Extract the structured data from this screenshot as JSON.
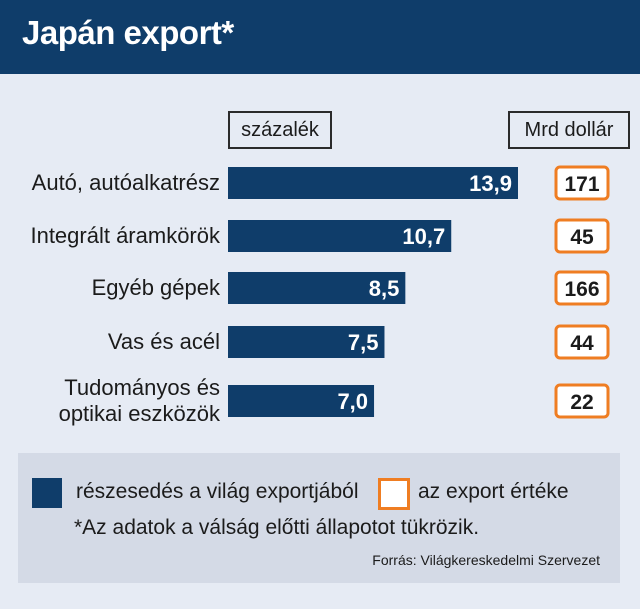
{
  "title": "Japán export*",
  "units": {
    "percent_label": "százalék",
    "usd_label": "Mrd dollár"
  },
  "colors": {
    "bar": "#0f3d6a",
    "value_box_border": "#ef7d22",
    "background": "#e6ebf4",
    "title_bar": "#0f3d6a"
  },
  "chart_data": {
    "type": "bar",
    "orientation": "horizontal",
    "categories": [
      [
        "Autó, autóalkatrész"
      ],
      [
        "Integrált áramkörök"
      ],
      [
        "Egyéb gépek"
      ],
      [
        "Vas és acél"
      ],
      [
        "Tudományos és",
        "optikai eszközök"
      ]
    ],
    "series": [
      {
        "name": "részesedés a világ exportjából",
        "values": [
          13.9,
          10.7,
          8.5,
          7.5,
          7.0
        ],
        "labels": [
          "13,9",
          "10,7",
          "8,5",
          "7,5",
          "7,0"
        ]
      },
      {
        "name": "az export értéke",
        "values": [
          171,
          45,
          166,
          44,
          22
        ],
        "labels": [
          "171",
          "45",
          "166",
          "44",
          "22"
        ]
      }
    ],
    "xlim": [
      0,
      14
    ]
  },
  "legend": {
    "bar_label": "részesedés a világ exportjából",
    "box_label": "az export értéke"
  },
  "footnote": "*Az adatok a válság előtti állapotot tükrözik.",
  "source": "Forrás:  Világkereskedelmi Szervezet"
}
